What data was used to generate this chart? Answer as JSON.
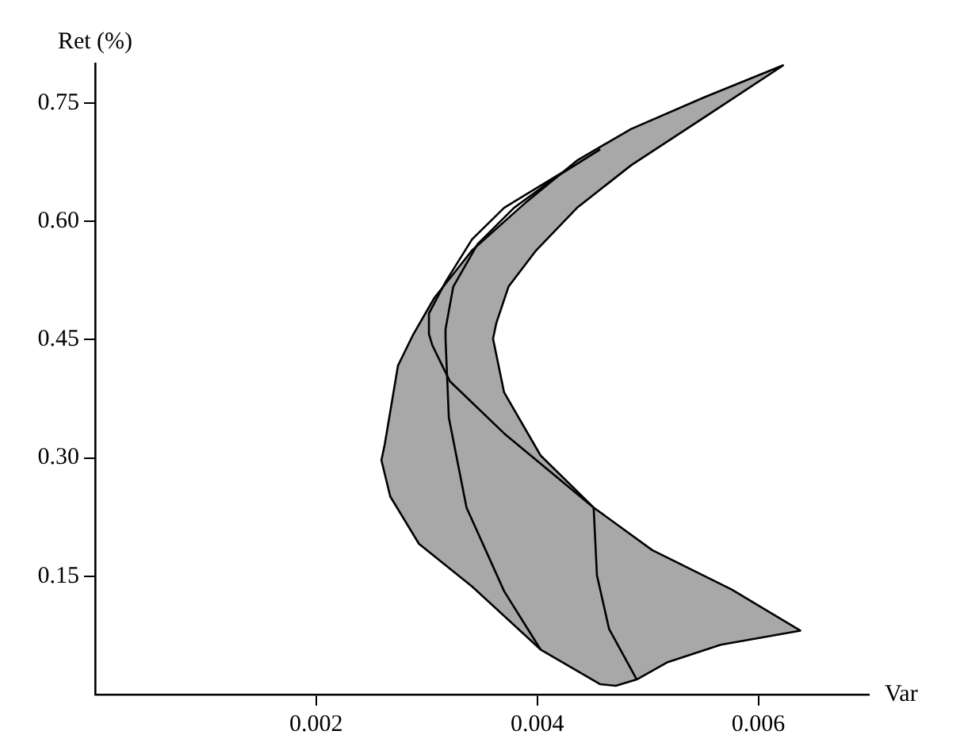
{
  "chart_data": {
    "type": "line",
    "xlabel": "Var",
    "ylabel": "Ret (%)",
    "xlim": [
      0,
      0.007
    ],
    "ylim": [
      0,
      0.8
    ],
    "xticks": [
      0.002,
      0.004,
      0.006
    ],
    "yticks": [
      {
        "value": 0.15,
        "label": "0.15"
      },
      {
        "value": 0.3,
        "label": "0.30"
      },
      {
        "value": 0.45,
        "label": "0.45"
      },
      {
        "value": 0.6,
        "label": "0.60"
      },
      {
        "value": 0.75,
        "label": "0.75"
      }
    ],
    "grid": false,
    "legend": false,
    "marker": "none",
    "line_style": "solid",
    "series": [
      {
        "type": "area",
        "color": "#a8a8a8",
        "x": [
          0.00623,
          0.00551,
          0.00485,
          0.00436,
          0.00389,
          0.00341,
          0.00307,
          0.00288,
          0.00274,
          0.00262,
          0.00259,
          0.00267,
          0.00293,
          0.00341,
          0.00403,
          0.00457,
          0.00471,
          0.0049,
          0.00518,
          0.00566,
          0.00638,
          0.00576,
          0.00504,
          0.00451,
          0.00403,
          0.0037,
          0.0036,
          0.00363,
          0.00374,
          0.00399,
          0.00436,
          0.00485,
          0.00557,
          0.00623
        ],
        "values": [
          0.798,
          0.757,
          0.717,
          0.677,
          0.623,
          0.563,
          0.503,
          0.457,
          0.417,
          0.317,
          0.297,
          0.251,
          0.191,
          0.137,
          0.057,
          0.013,
          0.011,
          0.019,
          0.041,
          0.063,
          0.081,
          0.133,
          0.183,
          0.237,
          0.303,
          0.383,
          0.451,
          0.471,
          0.517,
          0.563,
          0.617,
          0.671,
          0.737,
          0.798
        ]
      },
      {
        "type": "line",
        "color": "#000000",
        "x": [
          0.00424,
          0.0037,
          0.00341,
          0.00317,
          0.00302,
          0.00302,
          0.00305,
          0.00314,
          0.00321,
          0.0037,
          0.00451
        ],
        "values": [
          0.663,
          0.617,
          0.577,
          0.523,
          0.483,
          0.457,
          0.443,
          0.417,
          0.397,
          0.331,
          0.237
        ]
      },
      {
        "type": "line",
        "color": "#000000",
        "x": [
          0.00457,
          0.00418,
          0.00379,
          0.00346,
          0.00324,
          0.00317,
          0.00317,
          0.0032,
          0.00336,
          0.0037,
          0.00403
        ],
        "values": [
          0.691,
          0.657,
          0.617,
          0.571,
          0.517,
          0.463,
          0.451,
          0.351,
          0.237,
          0.131,
          0.057
        ]
      },
      {
        "type": "line",
        "color": "#000000",
        "x": [
          0.00451,
          0.00454,
          0.00465,
          0.0049
        ],
        "values": [
          0.237,
          0.151,
          0.083,
          0.019
        ]
      }
    ]
  }
}
